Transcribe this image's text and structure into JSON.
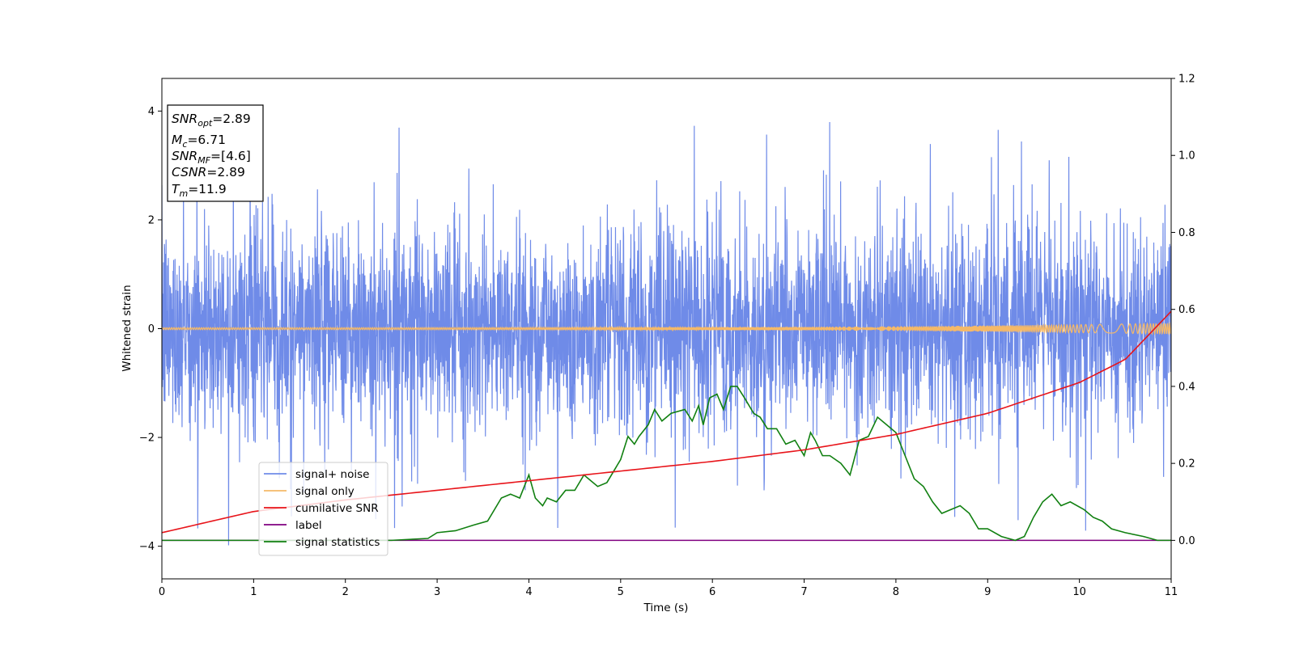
{
  "chart_data": {
    "type": "line",
    "xlabel": "Time (s)",
    "ylabel": "Whitened strain",
    "xlim": [
      0,
      11
    ],
    "ylim_left": [
      -4.6,
      4.6
    ],
    "ylim_right": [
      -0.1,
      1.2
    ],
    "x_ticks": [
      0,
      1,
      2,
      3,
      4,
      5,
      6,
      7,
      8,
      9,
      10,
      11
    ],
    "y_ticks_left": [
      -4,
      -2,
      0,
      2,
      4
    ],
    "y_ticks_right": [
      0.0,
      0.2,
      0.4,
      0.6,
      0.8,
      1.0,
      1.2
    ],
    "legend_position": "lower-left",
    "stats_box": {
      "snr_opt": {
        "label": "SNR",
        "sub": "opt",
        "value": "=2.89"
      },
      "mc": {
        "label": "M",
        "sub": "c",
        "value": "=6.71"
      },
      "snr_mf": {
        "label": "SNR",
        "sub": "MF",
        "value": "=[4.6]"
      },
      "csnr": {
        "label": "CSNR",
        "sub": "",
        "value": "=2.89"
      },
      "tm": {
        "label": "T",
        "sub": "m",
        "value": "=11.9"
      }
    },
    "series": [
      {
        "name": "signal+ noise",
        "color": "#6f8be8",
        "axis": "left",
        "description_values": {
          "typical_range": [
            -2.5,
            2.5
          ],
          "extremes": [
            -4.2,
            3.95
          ]
        }
      },
      {
        "name": "signal only",
        "color": "#f5b968",
        "axis": "left",
        "amplitude_start": 0.02,
        "amplitude_end": 0.1
      },
      {
        "name": "cumilative SNR",
        "color": "#e8141a",
        "axis": "right",
        "x": [
          0,
          1,
          2,
          3,
          4,
          5,
          6,
          7,
          8,
          9,
          10,
          10.5,
          11
        ],
        "y": [
          0.02,
          0.075,
          0.105,
          0.13,
          0.155,
          0.18,
          0.205,
          0.235,
          0.275,
          0.33,
          0.41,
          0.47,
          0.595
        ]
      },
      {
        "name": "label",
        "color": "#800080",
        "axis": "right",
        "x": [
          0,
          11
        ],
        "y": [
          0.0,
          0.0
        ]
      },
      {
        "name": "signal statistics",
        "color": "#118011",
        "axis": "right",
        "x": [
          0,
          2.5,
          2.9,
          3.0,
          3.2,
          3.4,
          3.55,
          3.7,
          3.8,
          3.9,
          4.0,
          4.07,
          4.15,
          4.2,
          4.3,
          4.4,
          4.5,
          4.6,
          4.65,
          4.75,
          4.85,
          4.95,
          5.0,
          5.08,
          5.15,
          5.2,
          5.3,
          5.37,
          5.45,
          5.55,
          5.7,
          5.78,
          5.85,
          5.9,
          5.97,
          6.05,
          6.12,
          6.2,
          6.27,
          6.35,
          6.45,
          6.52,
          6.6,
          6.7,
          6.8,
          6.9,
          7.0,
          7.07,
          7.12,
          7.2,
          7.28,
          7.4,
          7.5,
          7.6,
          7.7,
          7.8,
          7.9,
          8.0,
          8.1,
          8.2,
          8.3,
          8.4,
          8.5,
          8.6,
          8.7,
          8.8,
          8.9,
          9.0,
          9.15,
          9.3,
          9.4,
          9.5,
          9.6,
          9.7,
          9.8,
          9.9,
          10.05,
          10.15,
          10.25,
          10.35,
          10.5,
          10.7,
          10.85,
          11.0
        ],
        "y": [
          0.0,
          0.0,
          0.005,
          0.02,
          0.025,
          0.04,
          0.05,
          0.11,
          0.12,
          0.11,
          0.17,
          0.11,
          0.09,
          0.11,
          0.1,
          0.13,
          0.13,
          0.17,
          0.16,
          0.14,
          0.15,
          0.19,
          0.21,
          0.27,
          0.25,
          0.27,
          0.3,
          0.34,
          0.31,
          0.33,
          0.34,
          0.31,
          0.35,
          0.3,
          0.37,
          0.38,
          0.34,
          0.4,
          0.4,
          0.37,
          0.33,
          0.32,
          0.29,
          0.29,
          0.25,
          0.26,
          0.22,
          0.28,
          0.26,
          0.22,
          0.22,
          0.2,
          0.17,
          0.26,
          0.27,
          0.32,
          0.3,
          0.28,
          0.22,
          0.16,
          0.14,
          0.1,
          0.07,
          0.08,
          0.09,
          0.07,
          0.03,
          0.03,
          0.01,
          0.0,
          0.01,
          0.06,
          0.1,
          0.12,
          0.09,
          0.1,
          0.08,
          0.06,
          0.05,
          0.03,
          0.02,
          0.01,
          0.0,
          0.0
        ]
      }
    ]
  }
}
